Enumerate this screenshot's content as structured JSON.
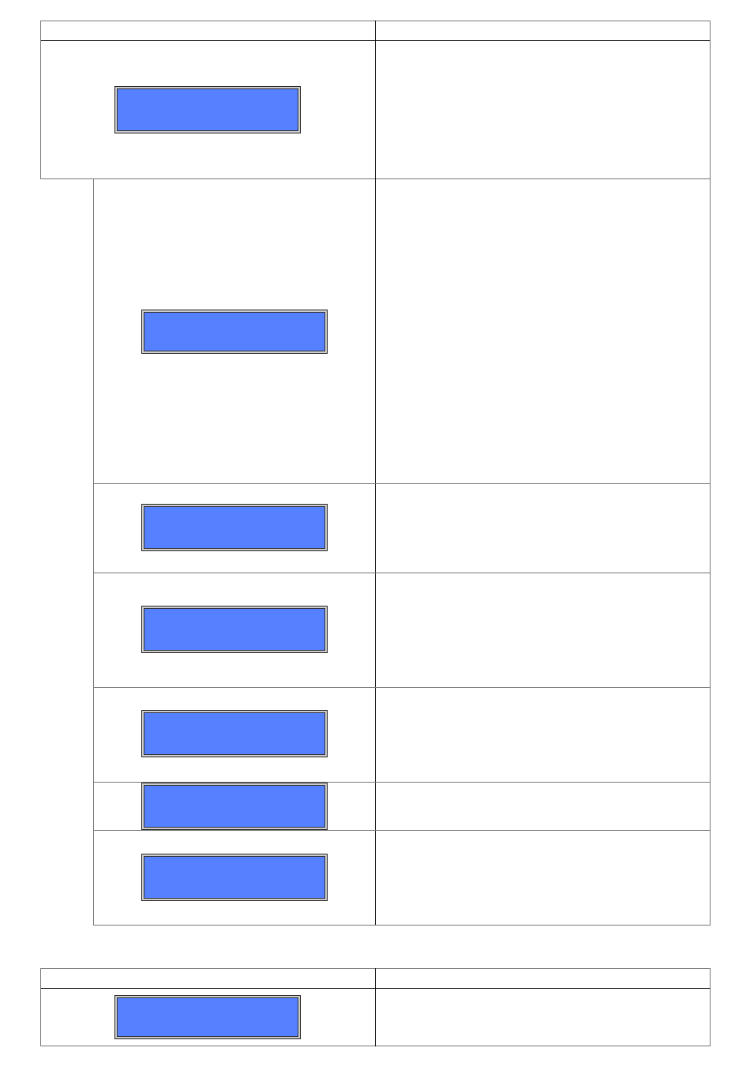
{
  "colors": {
    "display_fill": "#5580ff",
    "border": "#000000",
    "background": "#ffffff"
  },
  "tables": [
    {
      "rows": 2,
      "columns": 2,
      "display_count": 1
    },
    {
      "rows": 6,
      "columns": 2,
      "display_count": 6,
      "nested": true
    },
    {
      "rows": 2,
      "columns": 2,
      "display_count": 1
    }
  ]
}
